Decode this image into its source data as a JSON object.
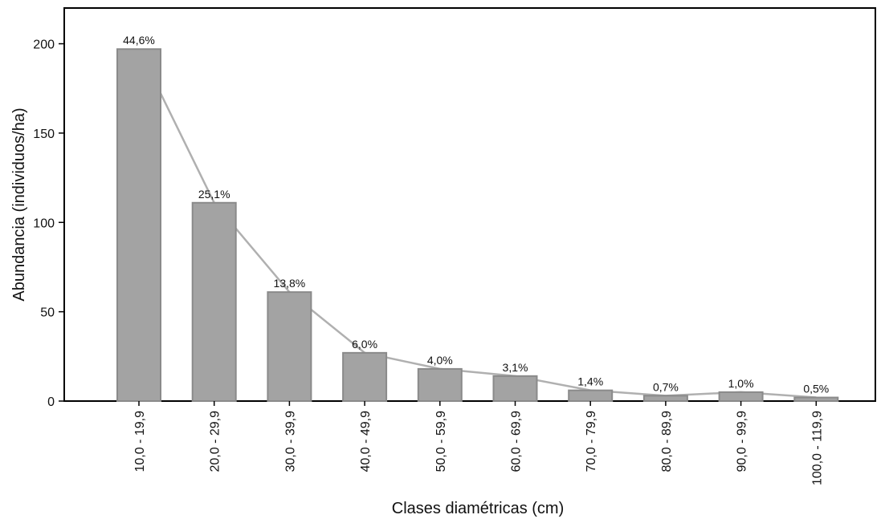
{
  "chart_data": {
    "type": "bar",
    "categories": [
      "10,0 - 19,9",
      "20,0 - 29,9",
      "30,0 - 39,9",
      "40,0 - 49,9",
      "50,0 - 59,9",
      "60,0 - 69,9",
      "70,0 - 79,9",
      "80,0 - 89,9",
      "90,0 - 99,9",
      "100,0 - 119,9"
    ],
    "values": [
      197,
      111,
      61,
      27,
      18,
      14,
      6,
      3,
      5,
      2
    ],
    "percent_labels": [
      "44,6%",
      "25,1%",
      "13,8%",
      "6,0%",
      "4,0%",
      "3,1%",
      "1,4%",
      "0,7%",
      "1,0%",
      "0,5%"
    ],
    "color": "#a3a3a3",
    "line_color": "#b0b0b0",
    "xlabel": "Clases diamétricas (cm)",
    "ylabel": "Abundancia (individuos/ha)",
    "ylim": [
      0,
      220
    ],
    "yticks": [
      0,
      50,
      100,
      150,
      200
    ]
  }
}
